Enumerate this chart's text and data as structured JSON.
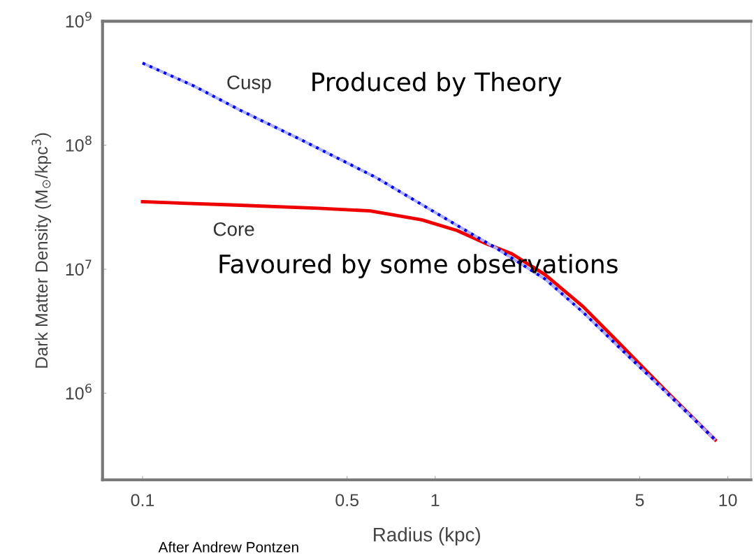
{
  "chart_data": {
    "type": "line",
    "xlabel": "Radius (kpc)",
    "ylabel": "Dark Matter Density (M$_{⊙}$/kpc$^{3}$)",
    "log": "xy",
    "grid": false,
    "legend": false,
    "xlim": [
      0.073,
      12
    ],
    "ylim": [
      200000,
      1000000000
    ],
    "xticks": [
      0.1,
      0.5,
      1,
      5,
      10
    ],
    "yticks": [
      {
        "value": 1000000,
        "label": "10$^{6}$"
      },
      {
        "value": 10000000,
        "label": "10$^{7}$"
      },
      {
        "value": 100000000,
        "label": "10$^{8}$"
      },
      {
        "value": 1000000000,
        "label": "10$^{9}$"
      }
    ],
    "series": [
      {
        "color": "#0000ee",
        "line_style": "dotted",
        "x": [
          0.1,
          0.15,
          0.217,
          0.35,
          0.627,
          1.19,
          1.6,
          2.38,
          3.2,
          4.21,
          6.2,
          9.06
        ],
        "values": [
          460000000,
          300000000,
          190000000,
          110000000,
          55000000,
          22500000,
          15000000,
          8300000,
          4500000,
          2400000,
          1000000,
          420000
        ]
      },
      {
        "color": "#ee0000",
        "line_style": "solid",
        "x": [
          0.1,
          0.2,
          0.4,
          0.6,
          0.9,
          1.19,
          1.5,
          1.83,
          2.38,
          3.2,
          4.21,
          6.2,
          9.06
        ],
        "values": [
          35000000,
          33000000,
          31000000,
          29500000,
          25000000,
          20500000,
          16000000,
          13300000,
          9000000,
          5000000,
          2600000,
          1020000,
          420000
        ]
      }
    ],
    "annotations": [
      "Cusp",
      "Produced by Theory",
      "Core",
      "Favoured by some observations",
      "After Andrew Pontzen"
    ]
  }
}
